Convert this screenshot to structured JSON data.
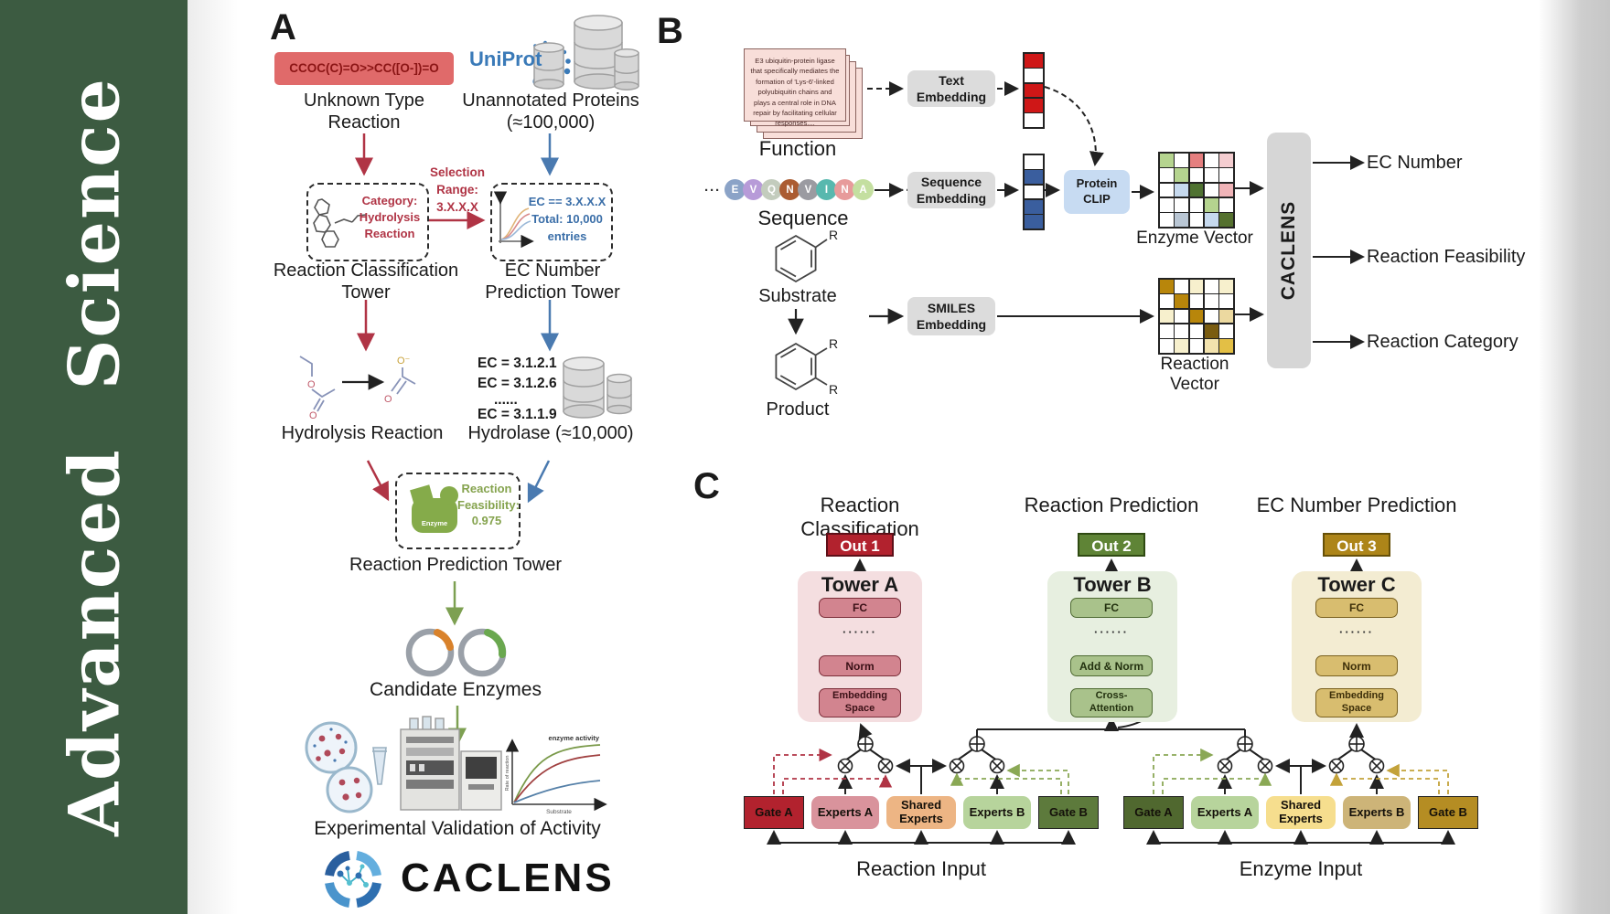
{
  "journal": {
    "name": "Advanced Science",
    "word1": "Advanced",
    "word2": "Science"
  },
  "colors": {
    "sidebar_green": "#3c5b41",
    "smiles_red": "#e06a6a",
    "arrow_red": "#b03445",
    "arrow_blue": "#4a7ab0",
    "arrow_green": "#7da052",
    "uniprot_blue": "#3a7ab8",
    "out1": "#b2222e",
    "out2": "#5f8436",
    "out3": "#ad8519"
  },
  "panelA": {
    "label": "A",
    "smiles": "CCOC(C)=O>>CC([O-])=O",
    "uniprot": "UniProt",
    "unknown_reaction": "Unknown Type Reaction",
    "unannotated": "Unannotated Proteins (≈100,000)",
    "selection": "Selection\nRange:\n3.X.X.X",
    "category_box": "Category:\nHydrolysis\nReaction",
    "ec_box": "EC == 3.X.X.X\nTotal: 10,000\nentries",
    "classification_tower": "Reaction Classification Tower",
    "ec_prediction_tower": "EC Number Prediction Tower",
    "ec_list": [
      "EC = 3.1.2.1",
      "EC = 3.1.2.6",
      "......",
      "EC = 3.1.1.9"
    ],
    "ec_list_colors": [
      "#a32020",
      "#bdbdbd",
      "#9a9a9a",
      "#a9c8e2"
    ],
    "hydrolysis": "Hydrolysis Reaction",
    "hydrolase": "Hydrolase (≈10,000)",
    "enzyme_icon_label": "Enzyme",
    "feasibility": "Reaction\nFeasibility:\n0.975",
    "reaction_prediction_tower": "Reaction Prediction Tower",
    "candidates": "Candidate Enzymes",
    "validation": "Experimental Validation of Activity",
    "brand": "CACLENS",
    "atoms": {
      "o": "O",
      "o_minus": "O⁻"
    },
    "chart": {
      "title": "enzyme activity",
      "ylabel": "Rate of reaction",
      "xlabel": "Substrate"
    }
  },
  "panelB": {
    "label": "B",
    "function_text": "E3 ubiquitin-protein ligase that specifically mediates the formation of 'Lys-6'-linked polyubiquitin chains and plays a central role in DNA repair by facilitating cellular responses....",
    "function": "Function",
    "dots": "···",
    "residues": [
      {
        "ch": "E",
        "color": "#8ba3c7"
      },
      {
        "ch": "V",
        "color": "#b79bd8"
      },
      {
        "ch": "Q",
        "color": "#c3ccbd"
      },
      {
        "ch": "N",
        "color": "#ab5c32"
      },
      {
        "ch": "V",
        "color": "#9b9ba1"
      },
      {
        "ch": "I",
        "color": "#58b8ae"
      },
      {
        "ch": "N",
        "color": "#e79b9b"
      },
      {
        "ch": "A",
        "color": "#c4dfa0"
      }
    ],
    "sequence": "Sequence",
    "substrate": "Substrate",
    "product": "Product",
    "r_label": "R",
    "text_embedding": "Text\nEmbedding",
    "sequence_embedding": "Sequence\nEmbedding",
    "smiles_embedding": "SMILES\nEmbedding",
    "protein_clip": "Protein\nCLIP",
    "text_vector": [
      "#cf1717",
      "#ffffff",
      "#cf1717",
      "#cf1717",
      "#ffffff"
    ],
    "seq_vector": [
      "#ffffff",
      "#3a5e9e",
      "#ffffff",
      "#3a5e9e",
      "#3a5e9e"
    ],
    "enzyme_vector_label": "Enzyme Vector",
    "reaction_vector_label": "Reaction Vector",
    "enzyme_grid": [
      [
        "#b5d48f",
        "#ffffff",
        "#e57f7f",
        "#ffffff",
        "#f4cdd0"
      ],
      [
        "#ffffff",
        "#b5d48f",
        "#ffffff",
        "#ffffff",
        "#ffffff"
      ],
      [
        "#ffffff",
        "#c6d9ee",
        "#4f7231",
        "#ffffff",
        "#f0b4b8"
      ],
      [
        "#ffffff",
        "#ffffff",
        "#ffffff",
        "#b5d48f",
        "#ffffff"
      ],
      [
        "#ffffff",
        "#b9c6d4",
        "#ffffff",
        "#c6d9ee",
        "#55712f"
      ]
    ],
    "reaction_grid": [
      [
        "#b8860b",
        "#ffffff",
        "#f7f0cd",
        "#ffffff",
        "#f7f0cd"
      ],
      [
        "#ffffff",
        "#b8860b",
        "#ffffff",
        "#ffffff",
        "#ffffff"
      ],
      [
        "#f7f0cd",
        "#ffffff",
        "#b8860b",
        "#ffffff",
        "#ecd9a0"
      ],
      [
        "#ffffff",
        "#ffffff",
        "#ffffff",
        "#7a5c10",
        "#ffffff"
      ],
      [
        "#ffffff",
        "#f7f0cd",
        "#ffffff",
        "#f3e3ae",
        "#e3bf45"
      ]
    ],
    "caclens": "CACLENS",
    "outputs": [
      "EC Number",
      "Reaction Feasibility",
      "Reaction Category"
    ]
  },
  "panelC": {
    "label": "C",
    "headers": [
      "Reaction Classification",
      "Reaction Prediction",
      "EC Number Prediction"
    ],
    "outs": [
      "Out 1",
      "Out 2",
      "Out 3"
    ],
    "towers": [
      {
        "name": "Tower A",
        "fc": "FC",
        "dots": "······",
        "mid": "Norm",
        "bottom": "Embedding\nSpace"
      },
      {
        "name": "Tower B",
        "fc": "FC",
        "dots": "······",
        "mid": "Add & Norm",
        "bottom": "Cross-\nAttention"
      },
      {
        "name": "Tower C",
        "fc": "FC",
        "dots": "······",
        "mid": "Norm",
        "bottom": "Embedding\nSpace"
      }
    ],
    "groups": {
      "reaction": {
        "gate_a": "Gate A",
        "experts_a": "Experts A",
        "shared": "Shared\nExperts",
        "experts_b": "Experts B",
        "gate_b": "Gate B",
        "label": "Reaction Input"
      },
      "enzyme": {
        "gate_a": "Gate A",
        "experts_a": "Experts A",
        "shared": "Shared\nExperts",
        "experts_b": "Experts B",
        "gate_b": "Gate B",
        "label": "Enzyme Input"
      }
    }
  }
}
